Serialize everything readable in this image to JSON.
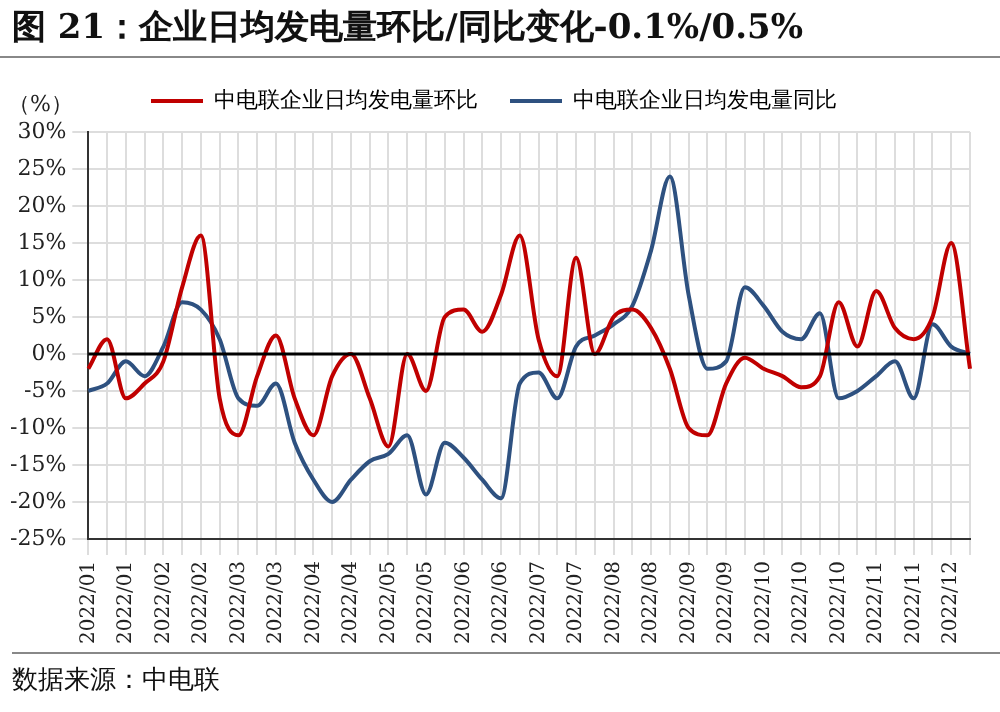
{
  "chart_data": {
    "type": "line",
    "title": "图 21：企业日均发电量环比/同比变化-0.1%/0.5%",
    "ylabel": "（%）",
    "categories": [
      "2022/01",
      null,
      "2022/01",
      null,
      "2022/02",
      null,
      "2022/02",
      null,
      "2022/03",
      null,
      "2022/03",
      null,
      "2022/04",
      null,
      "2022/04",
      null,
      "2022/05",
      null,
      "2022/05",
      null,
      "2022/06",
      null,
      "2022/06",
      null,
      "2022/07",
      null,
      "2022/07",
      null,
      "2022/08",
      null,
      "2022/08",
      null,
      "2022/09",
      null,
      "2022/09",
      null,
      "2022/10",
      null,
      "2022/10",
      null,
      "2022/10",
      null,
      "2022/11",
      null,
      "2022/11",
      null,
      "2022/12",
      null
    ],
    "series": [
      {
        "name": "中电联企业日均发电量环比",
        "color": "#c00000",
        "values": [
          -2,
          2,
          -6,
          -4,
          -1,
          9,
          16,
          -6,
          -11,
          -3,
          2.5,
          -6,
          -11,
          -3,
          0,
          -6,
          -12.5,
          0,
          -5,
          5,
          6,
          3,
          8,
          16,
          2,
          -3,
          13,
          0,
          5,
          6,
          3.5,
          -2,
          -10,
          -11,
          -4,
          -0.5,
          -2,
          -3,
          -4.5,
          -3,
          7,
          1,
          8.5,
          3.5,
          2,
          5,
          15,
          -2
        ]
      },
      {
        "name": "中电联企业日均发电量同比",
        "color": "#2e5180",
        "values": [
          -5,
          -4,
          -1,
          -3,
          1,
          7,
          6,
          2,
          -6,
          -7,
          -4,
          -12,
          -17,
          -20,
          -17,
          -14.5,
          -13.5,
          -11,
          -19,
          -12,
          -14,
          -17,
          -19.5,
          -4,
          -2.5,
          -6,
          1,
          2.5,
          4,
          6.5,
          14,
          24,
          8,
          -2,
          -1,
          9,
          6.5,
          3,
          2,
          5.5,
          -6,
          -5,
          -3,
          -1,
          -6,
          4,
          1,
          0
        ]
      }
    ],
    "ylim": [
      -25,
      30
    ],
    "yticks": [
      {
        "value": -25,
        "label": "-25%"
      },
      {
        "value": -20,
        "label": "-20%"
      },
      {
        "value": -15,
        "label": "-15%"
      },
      {
        "value": -10,
        "label": "-10%"
      },
      {
        "value": -5,
        "label": "-5%"
      },
      {
        "value": 0,
        "label": "0%"
      },
      {
        "value": 5,
        "label": "5%"
      },
      {
        "value": 10,
        "label": "10%"
      },
      {
        "value": 15,
        "label": "15%"
      },
      {
        "value": 20,
        "label": "20%"
      },
      {
        "value": 25,
        "label": "25%"
      },
      {
        "value": 30,
        "label": "30%"
      }
    ],
    "grid": true,
    "legend": "top",
    "marker": "none",
    "line_style": "solid",
    "annotations": [
      "数据来源：中电联"
    ]
  }
}
